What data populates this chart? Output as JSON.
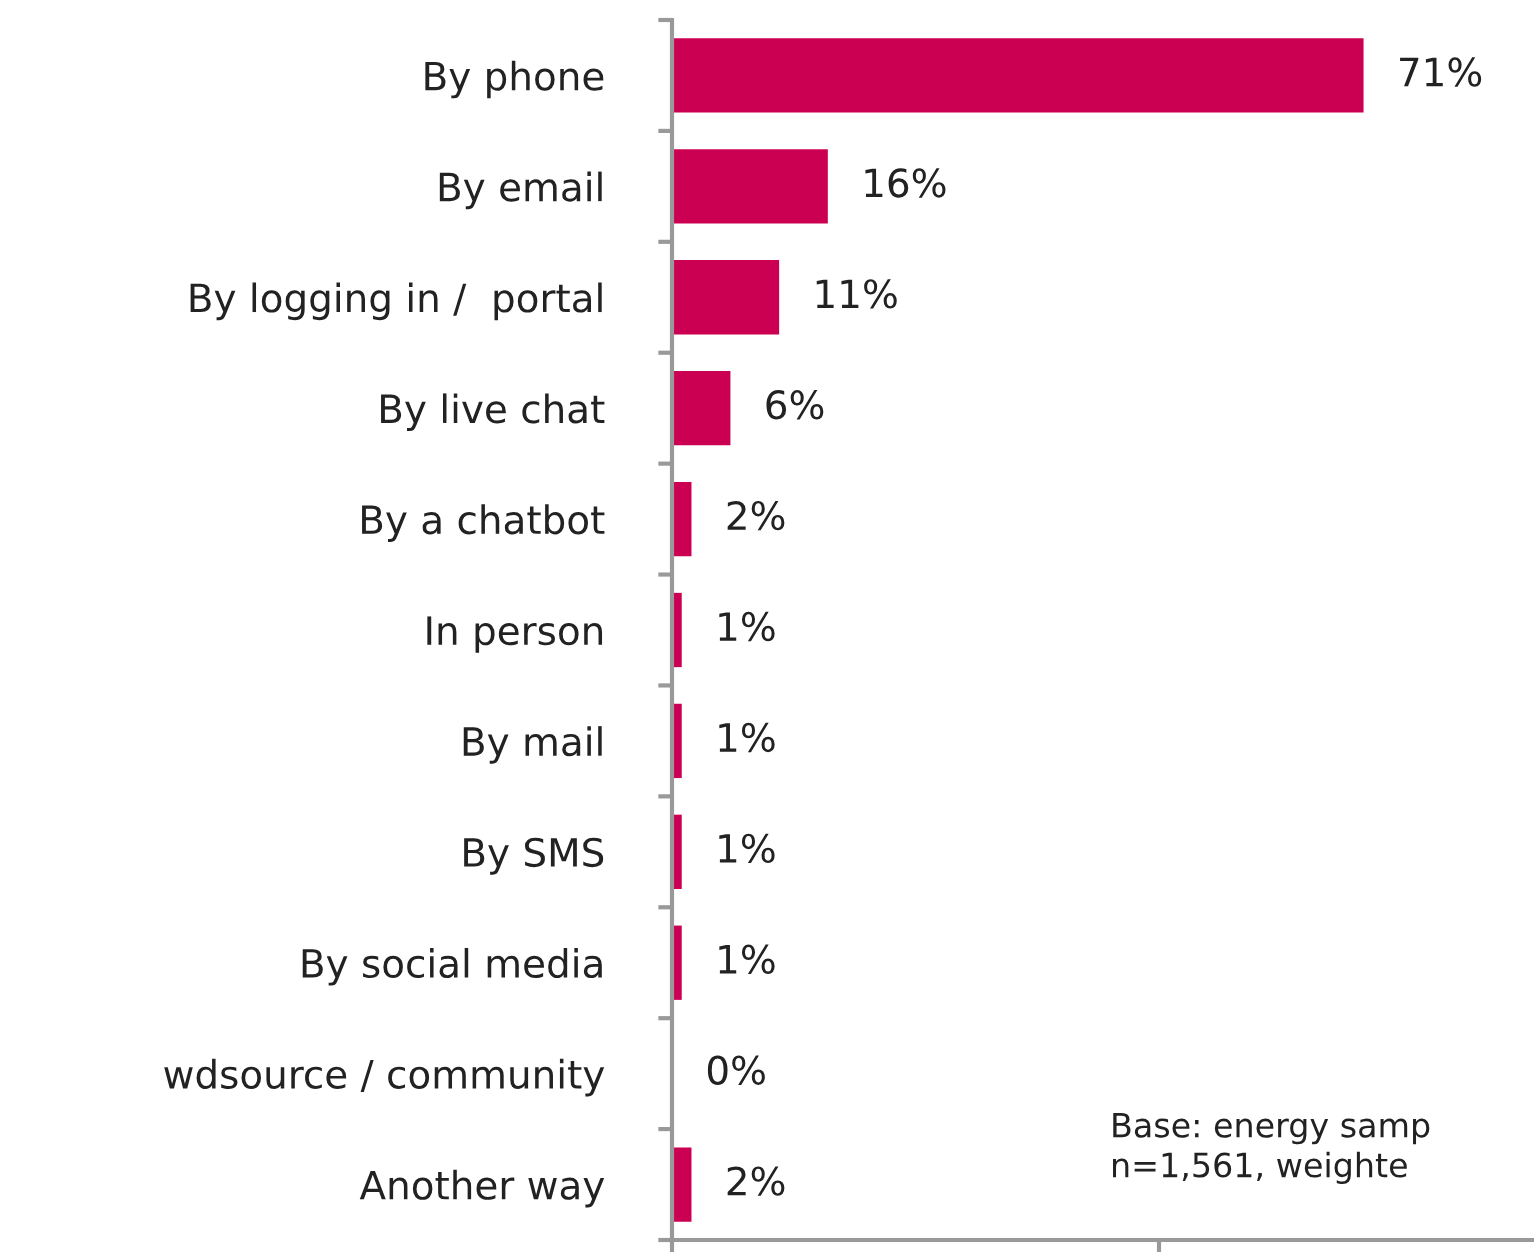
{
  "chart_data": {
    "type": "bar",
    "orientation": "horizontal",
    "categories": [
      "By phone",
      "By email",
      "By logging in /  portal",
      "By live chat",
      "By a chatbot",
      "In person",
      "By mail",
      "By SMS",
      "By social media",
      "wdsource / community",
      "Another way"
    ],
    "values": [
      71,
      16,
      11,
      6,
      2,
      1,
      1,
      1,
      1,
      0,
      2
    ],
    "value_labels": [
      "71%",
      "16%",
      "11%",
      "6%",
      "2%",
      "1%",
      "1%",
      "1%",
      "1%",
      "0%",
      "2%"
    ],
    "color": "#cc0052",
    "xlim": [
      0,
      88.5
    ],
    "xticks": [
      {
        "value": 0,
        "label": null
      },
      {
        "value": 50,
        "label": null
      }
    ],
    "tick_labels": "y",
    "grid": false,
    "legend": false,
    "annotations": [
      "Base: energy samp\nn=1,561, weighte"
    ]
  }
}
